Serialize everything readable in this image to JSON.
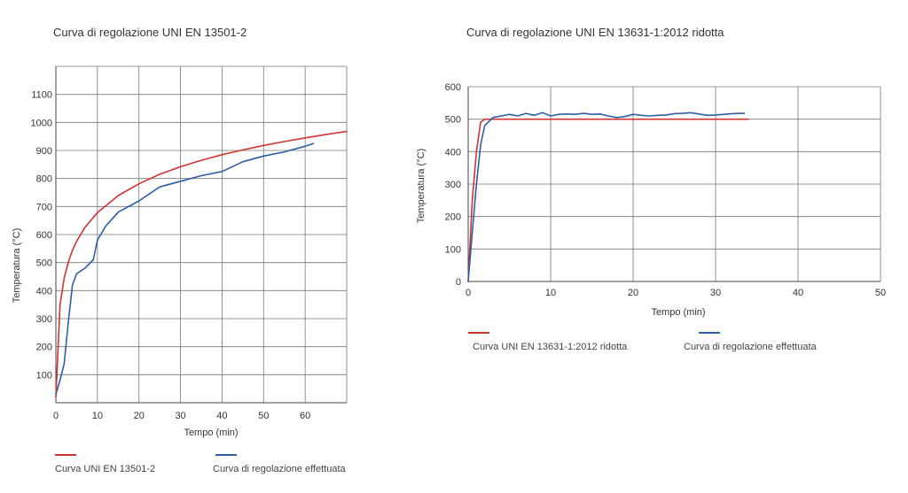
{
  "chart_data": [
    {
      "type": "line",
      "title": "Curva di regolazione UNI EN 13501-2",
      "xlabel": "Tempo (min)",
      "ylabel": "Temperatura (°C)",
      "xlim": [
        0,
        70
      ],
      "ylim": [
        0,
        1200
      ],
      "x_ticks": [
        0,
        10,
        20,
        30,
        40,
        50,
        60
      ],
      "y_ticks": [
        100,
        200,
        300,
        400,
        500,
        600,
        700,
        800,
        900,
        1000,
        1100
      ],
      "grid": true,
      "legend_position": "bottom",
      "series": [
        {
          "name": "Curva UNI EN 13501-2",
          "color": "#d2332f",
          "x": [
            0,
            1,
            2,
            3,
            4,
            5,
            7,
            10,
            15,
            20,
            25,
            30,
            35,
            40,
            45,
            50,
            55,
            60,
            65,
            70
          ],
          "y": [
            20,
            349,
            445,
            502,
            544,
            576,
            626,
            678,
            739,
            781,
            815,
            842,
            865,
            885,
            902,
            918,
            932,
            945,
            957,
            968
          ]
        },
        {
          "name": "Curva di regolazione effettuata",
          "color": "#2d5fa6",
          "x": [
            0,
            1,
            2,
            3,
            4,
            5,
            7,
            9,
            10,
            12,
            15,
            20,
            25,
            30,
            35,
            40,
            45,
            50,
            55,
            60,
            62
          ],
          "y": [
            30,
            80,
            140,
            290,
            420,
            460,
            480,
            510,
            580,
            630,
            680,
            720,
            770,
            790,
            810,
            825,
            860,
            880,
            895,
            915,
            925
          ]
        }
      ]
    },
    {
      "type": "line",
      "title": "Curva di regolazione UNI EN 13631-1:2012 ridotta",
      "xlabel": "Tempo (min)",
      "ylabel": "Temperatura (°C)",
      "xlim": [
        0,
        50
      ],
      "ylim": [
        0,
        600
      ],
      "x_ticks": [
        0,
        10,
        20,
        30,
        40,
        50
      ],
      "y_ticks": [
        0,
        100,
        200,
        300,
        400,
        500,
        600
      ],
      "grid": true,
      "legend_position": "bottom",
      "series": [
        {
          "name": "Curva UNI EN 13631-1:2012 ridotta",
          "color": "#d2332f",
          "x": [
            0,
            0.5,
            1,
            1.5,
            2,
            3,
            5,
            10,
            20,
            30,
            34
          ],
          "y": [
            0,
            250,
            400,
            490,
            500,
            500,
            500,
            500,
            500,
            500,
            500
          ]
        },
        {
          "name": "Curva di regolazione effettuata",
          "color": "#2d5fa6",
          "x": [
            0,
            0.5,
            1,
            1.5,
            2,
            3,
            4,
            5,
            6,
            7,
            8,
            9,
            10,
            11,
            12,
            13,
            14,
            15,
            16,
            17,
            18,
            19,
            20,
            21,
            22,
            23,
            24,
            25,
            26,
            27,
            28,
            29,
            30,
            31,
            32,
            33,
            33.5
          ],
          "y": [
            0,
            150,
            300,
            420,
            480,
            505,
            510,
            515,
            510,
            518,
            512,
            520,
            510,
            515,
            516,
            515,
            518,
            515,
            516,
            510,
            505,
            508,
            515,
            512,
            510,
            512,
            513,
            517,
            518,
            520,
            516,
            512,
            513,
            515,
            517,
            518,
            518
          ]
        }
      ]
    }
  ]
}
